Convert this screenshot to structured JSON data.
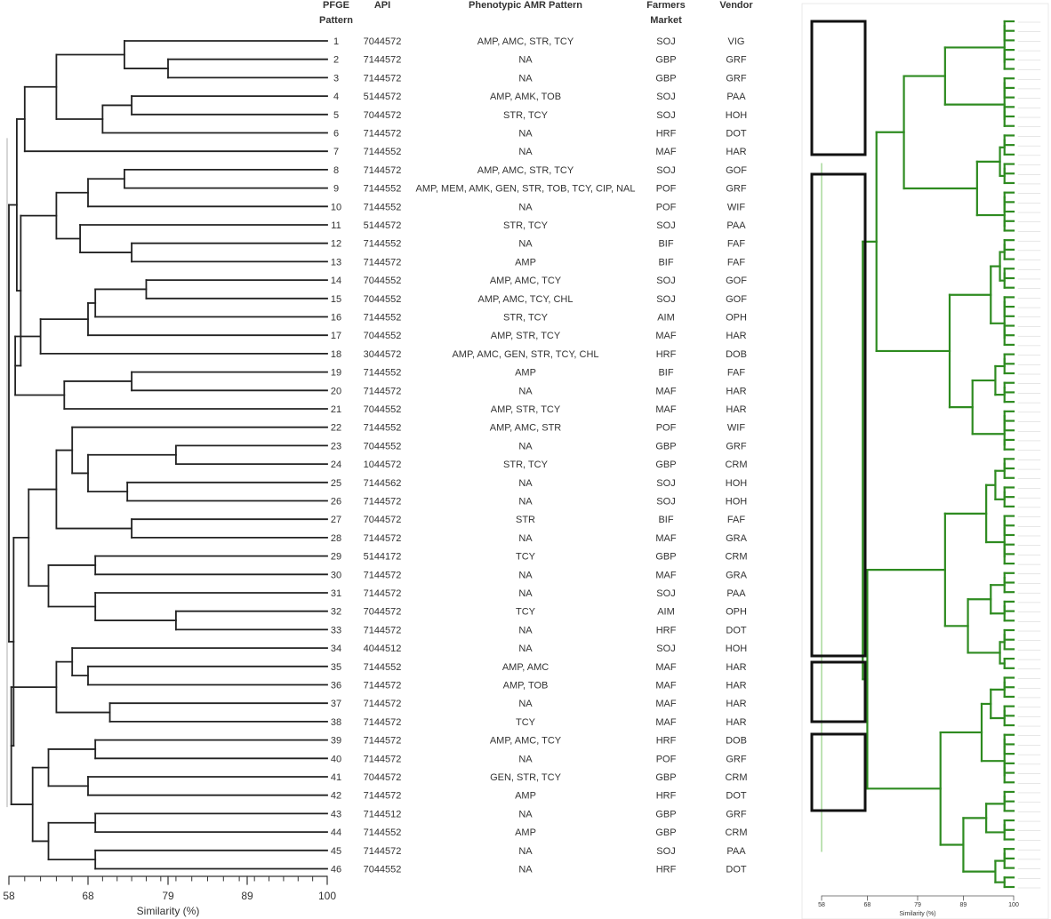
{
  "headers": {
    "pfge": "PFGE",
    "pfge2": "Pattern",
    "api": "API",
    "amr": "Phenotypic AMR Pattern",
    "market": "Farmers",
    "market2": "Market",
    "vendor": "Vendor"
  },
  "rows": [
    {
      "pattern": "1",
      "api": "7044572",
      "amr": "AMP, AMC, STR, TCY",
      "market": "SOJ",
      "vendor": "VIG"
    },
    {
      "pattern": "2",
      "api": "7144572",
      "amr": "NA",
      "market": "GBP",
      "vendor": "GRF"
    },
    {
      "pattern": "3",
      "api": "7144572",
      "amr": "NA",
      "market": "GBP",
      "vendor": "GRF"
    },
    {
      "pattern": "4",
      "api": "5144572",
      "amr": "AMP, AMK, TOB",
      "market": "SOJ",
      "vendor": "PAA"
    },
    {
      "pattern": "5",
      "api": "7044572",
      "amr": "STR, TCY",
      "market": "SOJ",
      "vendor": "HOH"
    },
    {
      "pattern": "6",
      "api": "7144572",
      "amr": "NA",
      "market": "HRF",
      "vendor": "DOT"
    },
    {
      "pattern": "7",
      "api": "7144552",
      "amr": "NA",
      "market": "MAF",
      "vendor": "HAR"
    },
    {
      "pattern": "8",
      "api": "7144572",
      "amr": "AMP, AMC, STR, TCY",
      "market": "SOJ",
      "vendor": "GOF"
    },
    {
      "pattern": "9",
      "api": "7144552",
      "amr": "AMP, MEM, AMK, GEN, STR, TOB, TCY, CIP, NAL",
      "market": "POF",
      "vendor": "GRF"
    },
    {
      "pattern": "10",
      "api": "7144552",
      "amr": "NA",
      "market": "POF",
      "vendor": "WIF"
    },
    {
      "pattern": "11",
      "api": "5144572",
      "amr": "STR, TCY",
      "market": "SOJ",
      "vendor": "PAA"
    },
    {
      "pattern": "12",
      "api": "7144552",
      "amr": "NA",
      "market": "BIF",
      "vendor": "FAF"
    },
    {
      "pattern": "13",
      "api": "7144572",
      "amr": "AMP",
      "market": "BIF",
      "vendor": "FAF"
    },
    {
      "pattern": "14",
      "api": "7044552",
      "amr": "AMP, AMC, TCY",
      "market": "SOJ",
      "vendor": "GOF"
    },
    {
      "pattern": "15",
      "api": "7044552",
      "amr": "AMP, AMC, TCY, CHL",
      "market": "SOJ",
      "vendor": "GOF"
    },
    {
      "pattern": "16",
      "api": "7144552",
      "amr": "STR, TCY",
      "market": "AIM",
      "vendor": "OPH"
    },
    {
      "pattern": "17",
      "api": "7044552",
      "amr": "AMP, STR, TCY",
      "market": "MAF",
      "vendor": "HAR"
    },
    {
      "pattern": "18",
      "api": "3044572",
      "amr": "AMP, AMC, GEN, STR, TCY, CHL",
      "market": "HRF",
      "vendor": "DOB"
    },
    {
      "pattern": "19",
      "api": "7144552",
      "amr": "AMP",
      "market": "BIF",
      "vendor": "FAF"
    },
    {
      "pattern": "20",
      "api": "7144572",
      "amr": "NA",
      "market": "MAF",
      "vendor": "HAR"
    },
    {
      "pattern": "21",
      "api": "7044552",
      "amr": "AMP, STR, TCY",
      "market": "MAF",
      "vendor": "HAR"
    },
    {
      "pattern": "22",
      "api": "7144552",
      "amr": "AMP, AMC, STR",
      "market": "POF",
      "vendor": "WIF"
    },
    {
      "pattern": "23",
      "api": "7044552",
      "amr": "NA",
      "market": "GBP",
      "vendor": "GRF"
    },
    {
      "pattern": "24",
      "api": "1044572",
      "amr": "STR, TCY",
      "market": "GBP",
      "vendor": "CRM"
    },
    {
      "pattern": "25",
      "api": "7144562",
      "amr": "NA",
      "market": "SOJ",
      "vendor": "HOH"
    },
    {
      "pattern": "26",
      "api": "7144572",
      "amr": "NA",
      "market": "SOJ",
      "vendor": "HOH"
    },
    {
      "pattern": "27",
      "api": "7044572",
      "amr": "STR",
      "market": "BIF",
      "vendor": "FAF"
    },
    {
      "pattern": "28",
      "api": "7144572",
      "amr": "NA",
      "market": "MAF",
      "vendor": "GRA"
    },
    {
      "pattern": "29",
      "api": "5144172",
      "amr": "TCY",
      "market": "GBP",
      "vendor": "CRM"
    },
    {
      "pattern": "30",
      "api": "7144572",
      "amr": "NA",
      "market": "MAF",
      "vendor": "GRA"
    },
    {
      "pattern": "31",
      "api": "7144572",
      "amr": "NA",
      "market": "SOJ",
      "vendor": "PAA"
    },
    {
      "pattern": "32",
      "api": "7044572",
      "amr": "TCY",
      "market": "AIM",
      "vendor": "OPH"
    },
    {
      "pattern": "33",
      "api": "7144572",
      "amr": "NA",
      "market": "HRF",
      "vendor": "DOT"
    },
    {
      "pattern": "34",
      "api": "4044512",
      "amr": "NA",
      "market": "SOJ",
      "vendor": "HOH"
    },
    {
      "pattern": "35",
      "api": "7144552",
      "amr": "AMP, AMC",
      "market": "MAF",
      "vendor": "HAR"
    },
    {
      "pattern": "36",
      "api": "7144572",
      "amr": "AMP, TOB",
      "market": "MAF",
      "vendor": "HAR"
    },
    {
      "pattern": "37",
      "api": "7144572",
      "amr": "NA",
      "market": "MAF",
      "vendor": "HAR"
    },
    {
      "pattern": "38",
      "api": "7144572",
      "amr": "TCY",
      "market": "MAF",
      "vendor": "HAR"
    },
    {
      "pattern": "39",
      "api": "7144572",
      "amr": "AMP, AMC, TCY",
      "market": "HRF",
      "vendor": "DOB"
    },
    {
      "pattern": "40",
      "api": "7144572",
      "amr": "NA",
      "market": "POF",
      "vendor": "GRF"
    },
    {
      "pattern": "41",
      "api": "7044572",
      "amr": "GEN, STR, TCY",
      "market": "GBP",
      "vendor": "CRM"
    },
    {
      "pattern": "42",
      "api": "7144572",
      "amr": "AMP",
      "market": "HRF",
      "vendor": "DOT"
    },
    {
      "pattern": "43",
      "api": "7144512",
      "amr": "NA",
      "market": "GBP",
      "vendor": "GRF"
    },
    {
      "pattern": "44",
      "api": "7144552",
      "amr": "AMP",
      "market": "GBP",
      "vendor": "CRM"
    },
    {
      "pattern": "45",
      "api": "7144572",
      "amr": "NA",
      "market": "SOJ",
      "vendor": "PAA"
    },
    {
      "pattern": "46",
      "api": "7044552",
      "amr": "NA",
      "market": "HRF",
      "vendor": "DOT"
    }
  ],
  "main_axis": {
    "ticks": [
      "58",
      "68",
      "79",
      "89",
      "100"
    ],
    "tick_values": [
      58,
      68,
      79,
      89,
      100
    ],
    "title": "Similarity (%)"
  },
  "thumb_axis": {
    "ticks": [
      "58",
      "68",
      "79",
      "89",
      "100"
    ],
    "title": "Similarity (%)"
  },
  "colors": {
    "main_tree": "#222222",
    "thumb_tree": "#2e8b20",
    "thumb_tree_light": "#7cc46a",
    "box": "#111111",
    "root_line": "#bbbbbb"
  }
}
